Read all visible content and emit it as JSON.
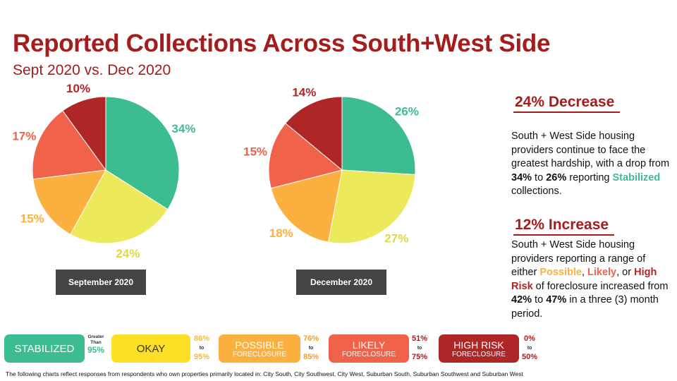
{
  "title": "Reported Collections Across South+West Side",
  "subtitle": "Sept 2020 vs. Dec 2020",
  "colors": {
    "stabilized": "#3dbd8f",
    "okay": "#ece95a",
    "possible": "#fbb040",
    "likely": "#f0634a",
    "high_risk": "#ae2626",
    "accent": "#a51c1c"
  },
  "chart_data": [
    {
      "type": "pie",
      "title": "September 2020",
      "categories": [
        "Stabilized",
        "Okay",
        "Possible Foreclosure",
        "Likely Foreclosure",
        "High Risk Foreclosure"
      ],
      "values": [
        34,
        24,
        15,
        17,
        10
      ],
      "labels": [
        "34%",
        "24%",
        "15%",
        "17%",
        "10%"
      ]
    },
    {
      "type": "pie",
      "title": "December 2020",
      "categories": [
        "Stabilized",
        "Okay",
        "Possible Foreclosure",
        "Likely Foreclosure",
        "High Risk Foreclosure"
      ],
      "values": [
        26,
        27,
        18,
        15,
        14
      ],
      "labels": [
        "26%",
        "27%",
        "18%",
        "15%",
        "14%"
      ]
    }
  ],
  "side": {
    "decrease_head": "24% Decrease",
    "p1": [
      "South + West Side housing providers continue to face the greatest hardship, with a drop from ",
      "34%",
      " to ",
      "26%",
      " reporting ",
      "Stabilized",
      " collections."
    ],
    "increase_head": "12% Increase",
    "p2": [
      "South + West Side housing providers reporting a range of either ",
      "Possible",
      ", ",
      "Likely",
      ", or ",
      "High Risk",
      " of foreclosure increased from ",
      "42%",
      " to ",
      "47%",
      " in a three (3) month period."
    ]
  },
  "legend": [
    {
      "l1": "STABILIZED",
      "l2": "",
      "r1": "Greater",
      "r2": "Than",
      "r3": "95%"
    },
    {
      "l1": "OKAY",
      "l2": "",
      "r1": "86%",
      "r2": "to",
      "r3": "95%"
    },
    {
      "l1": "POSSIBLE",
      "l2": "FORECLOSURE",
      "r1": "76%",
      "r2": "to",
      "r3": "85%"
    },
    {
      "l1": "LIKELY",
      "l2": "FORECLOSURE",
      "r1": "51%",
      "r2": "to",
      "r3": "75%"
    },
    {
      "l1": "HIGH RISK",
      "l2": "FORECLOSURE",
      "r1": "0%",
      "r2": "to",
      "r3": "50%"
    }
  ],
  "footnote": "The following charts reflect responses from respondents who own properties primarily located in: City South, City Southwest, City West, Suburban South, Suburban Southwest and Suburban West"
}
